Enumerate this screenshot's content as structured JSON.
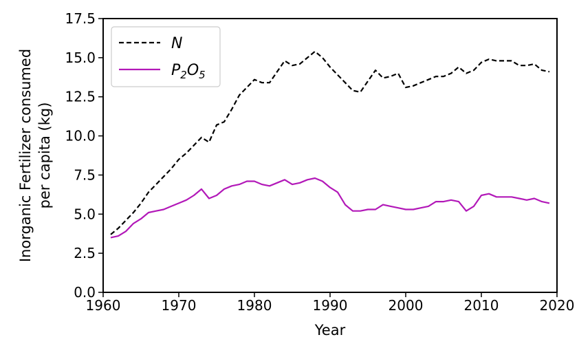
{
  "chart_data": {
    "type": "line",
    "xlabel": "Year",
    "ylabel_line1": "Inorganic Fertilizer consumed",
    "ylabel_line2": "per capita (kg)",
    "xlim": [
      1960,
      2020
    ],
    "ylim": [
      0.0,
      17.5
    ],
    "x_ticks": [
      "1960",
      "1970",
      "1980",
      "1990",
      "2000",
      "2010",
      "2020"
    ],
    "y_ticks": [
      "0.0",
      "2.5",
      "5.0",
      "7.5",
      "10.0",
      "12.5",
      "15.0",
      "17.5"
    ],
    "grid": false,
    "legend_position": "top-left",
    "legend": {
      "n": {
        "main": "N"
      },
      "p": {
        "main": "P",
        "sub1": "2",
        "mid": "O",
        "sub2": "5"
      }
    },
    "x": [
      1961,
      1962,
      1963,
      1964,
      1965,
      1966,
      1967,
      1968,
      1969,
      1970,
      1971,
      1972,
      1973,
      1974,
      1975,
      1976,
      1977,
      1978,
      1979,
      1980,
      1981,
      1982,
      1983,
      1984,
      1985,
      1986,
      1987,
      1988,
      1989,
      1990,
      1991,
      1992,
      1993,
      1994,
      1995,
      1996,
      1997,
      1998,
      1999,
      2000,
      2001,
      2002,
      2003,
      2004,
      2005,
      2006,
      2007,
      2008,
      2009,
      2010,
      2011,
      2012,
      2013,
      2014,
      2015,
      2016,
      2017,
      2018,
      2019
    ],
    "series": [
      {
        "name": "N",
        "color": "#000000",
        "style": "dashed",
        "values": [
          3.7,
          4.1,
          4.6,
          5.1,
          5.7,
          6.4,
          6.9,
          7.4,
          7.9,
          8.5,
          8.9,
          9.4,
          9.9,
          9.6,
          10.7,
          10.9,
          11.7,
          12.6,
          13.1,
          13.6,
          13.4,
          13.4,
          14.1,
          14.8,
          14.5,
          14.6,
          15.0,
          15.4,
          15.0,
          14.4,
          13.9,
          13.4,
          12.9,
          12.8,
          13.5,
          14.2,
          13.7,
          13.8,
          14.0,
          13.1,
          13.2,
          13.4,
          13.6,
          13.8,
          13.8,
          14.0,
          14.4,
          14.0,
          14.2,
          14.7,
          14.9,
          14.8,
          14.8,
          14.8,
          14.5,
          14.5,
          14.6,
          14.2,
          14.1
        ]
      },
      {
        "name": "P2O5",
        "color": "#b218b8",
        "style": "solid",
        "values": [
          3.5,
          3.6,
          3.9,
          4.4,
          4.7,
          5.1,
          5.2,
          5.3,
          5.5,
          5.7,
          5.9,
          6.2,
          6.6,
          6.0,
          6.2,
          6.6,
          6.8,
          6.9,
          7.1,
          7.1,
          6.9,
          6.8,
          7.0,
          7.2,
          6.9,
          7.0,
          7.2,
          7.3,
          7.1,
          6.7,
          6.4,
          5.6,
          5.2,
          5.2,
          5.3,
          5.3,
          5.6,
          5.5,
          5.4,
          5.3,
          5.3,
          5.4,
          5.5,
          5.8,
          5.8,
          5.9,
          5.8,
          5.2,
          5.5,
          6.2,
          6.3,
          6.1,
          6.1,
          6.1,
          6.0,
          5.9,
          6.0,
          5.8,
          5.7
        ]
      }
    ]
  }
}
